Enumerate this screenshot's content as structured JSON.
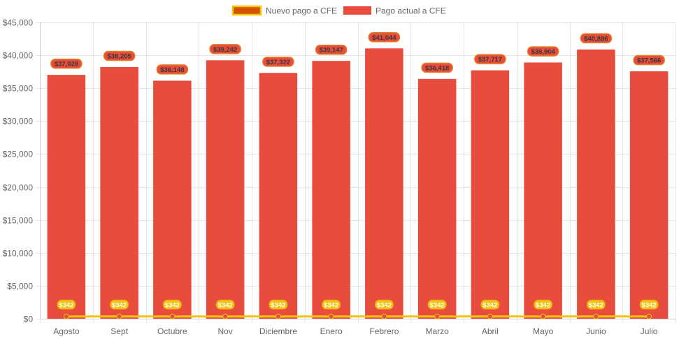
{
  "chart_data": {
    "type": "bar",
    "title": "",
    "xlabel": "",
    "ylabel": "",
    "ylim": [
      0,
      45000
    ],
    "y_tick_step": 5000,
    "y_tick_labels": [
      "$0",
      "$5,000",
      "$10,000",
      "$15,000",
      "$20,000",
      "$25,000",
      "$30,000",
      "$35,000",
      "$40,000",
      "$45,000"
    ],
    "grid": true,
    "legend_position": "top",
    "categories": [
      "Agosto",
      "Sept",
      "Octubre",
      "Nov",
      "Diciembre",
      "Enero",
      "Febrero",
      "Marzo",
      "Abril",
      "Mayo",
      "Junio",
      "Julio"
    ],
    "series": [
      {
        "name": "Nuevo pago a CFE",
        "type": "line",
        "color": "#d35400",
        "border_color": "#f1c40f",
        "values": [
          342,
          342,
          342,
          342,
          342,
          342,
          342,
          342,
          342,
          342,
          342,
          342
        ],
        "labels": [
          "$342",
          "$342",
          "$342",
          "$342",
          "$342",
          "$342",
          "$342",
          "$342",
          "$342",
          "$342",
          "$342",
          "$342"
        ]
      },
      {
        "name": "Pago actual a CFE",
        "type": "bar",
        "color": "#e74c3c",
        "label_border_color": "#e67e22",
        "values": [
          37028,
          38205,
          36148,
          39242,
          37322,
          39147,
          41044,
          36418,
          37717,
          38904,
          40886,
          37566
        ],
        "labels": [
          "$37,028",
          "$38,205",
          "$36,148",
          "$39,242",
          "$37,322",
          "$39,147",
          "$41,044",
          "$36,418",
          "$37,717",
          "$38,904",
          "$40,886",
          "$37,566"
        ]
      }
    ]
  }
}
